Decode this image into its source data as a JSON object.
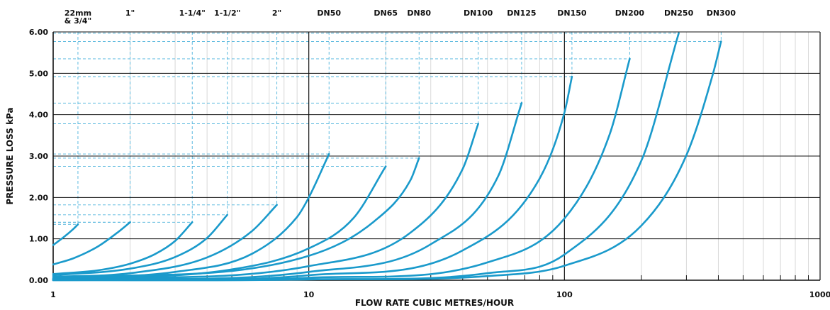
{
  "chart_data": {
    "type": "line",
    "title": "",
    "xlabel": "FLOW RATE CUBIC METRES/HOUR",
    "ylabel": "PRESSURE LOSS kPa",
    "x_scale": "log",
    "xlim": [
      1,
      1000
    ],
    "ylim": [
      0,
      6
    ],
    "x_tick_labels": [
      "1",
      "10",
      "100",
      "1000"
    ],
    "y_tick_labels": [
      "0.00",
      "1.00",
      "2.00",
      "3.00",
      "4.00",
      "5.00",
      "6.00"
    ],
    "grid": true,
    "line_color": "#1a9acb",
    "series": [
      {
        "name": "22mm & 3/4\"",
        "label_lines": [
          "22mm",
          "& 3/4\""
        ],
        "x": [
          1.0,
          1.1,
          1.2,
          1.25
        ],
        "y": [
          0.85,
          1.04,
          1.24,
          1.35
        ]
      },
      {
        "name": "1\"",
        "label_lines": [
          "1\""
        ],
        "x": [
          1.0,
          1.2,
          1.5,
          1.8,
          2.0
        ],
        "y": [
          0.38,
          0.53,
          0.82,
          1.17,
          1.4
        ]
      },
      {
        "name": "1-1/4\"",
        "label_lines": [
          "1-1/4\""
        ],
        "x": [
          1.0,
          1.5,
          2.0,
          2.5,
          3.0,
          3.5
        ],
        "y": [
          0.15,
          0.24,
          0.4,
          0.63,
          0.95,
          1.4
        ]
      },
      {
        "name": "1-1/2\"",
        "label_lines": [
          "1-1/2\""
        ],
        "x": [
          1.0,
          2.0,
          3.0,
          4.0,
          4.8
        ],
        "y": [
          0.12,
          0.28,
          0.56,
          1.02,
          1.58
        ]
      },
      {
        "name": "2\"",
        "label_lines": [
          "2\""
        ],
        "x": [
          1.0,
          2.0,
          4.0,
          6.0,
          7.5
        ],
        "y": [
          0.08,
          0.17,
          0.55,
          1.19,
          1.82
        ]
      },
      {
        "name": "DN50",
        "label_lines": [
          "DN50"
        ],
        "x": [
          1.0,
          3.0,
          6.0,
          9.0,
          10.0,
          12.0
        ],
        "y": [
          0.05,
          0.2,
          0.64,
          1.53,
          2.0,
          3.05
        ]
      },
      {
        "name": "DN65",
        "label_lines": [
          "DN65"
        ],
        "x": [
          1.0,
          5.0,
          10.0,
          15.0,
          20.0
        ],
        "y": [
          0.04,
          0.26,
          0.77,
          1.51,
          2.75
        ]
      },
      {
        "name": "DN80",
        "label_lines": [
          "DN80"
        ],
        "x": [
          1.0,
          10.0,
          18.0,
          25.0,
          27.0
        ],
        "y": [
          0.03,
          0.59,
          1.42,
          2.42,
          2.95
        ]
      },
      {
        "name": "DN100",
        "label_lines": [
          "DN100"
        ],
        "x": [
          1.0,
          10.0,
          25.0,
          40.0,
          46.0
        ],
        "y": [
          0.02,
          0.34,
          1.15,
          2.69,
          3.78
        ]
      },
      {
        "name": "DN125",
        "label_lines": [
          "DN125"
        ],
        "x": [
          1.0,
          10.0,
          30.0,
          55.0,
          68.0
        ],
        "y": [
          0.01,
          0.2,
          0.87,
          2.51,
          4.28
        ]
      },
      {
        "name": "DN150",
        "label_lines": [
          "DN150"
        ],
        "x": [
          1.0,
          10.0,
          40.0,
          80.0,
          100.0,
          107.0
        ],
        "y": [
          0.01,
          0.12,
          0.72,
          2.46,
          4.05,
          4.92
        ]
      },
      {
        "name": "DN200",
        "label_lines": [
          "DN200"
        ],
        "x": [
          1.0,
          10.0,
          50.0,
          100.0,
          150.0,
          180.0
        ],
        "y": [
          0.01,
          0.06,
          0.43,
          1.49,
          3.51,
          5.35
        ]
      },
      {
        "name": "DN250",
        "label_lines": [
          "DN250"
        ],
        "x": [
          1.0,
          10.0,
          50.0,
          100.0,
          200.0,
          280.0
        ],
        "y": [
          0.0,
          0.02,
          0.17,
          0.62,
          2.89,
          5.97
        ]
      },
      {
        "name": "DN300",
        "label_lines": [
          "DN300"
        ],
        "x": [
          1.0,
          10.0,
          50.0,
          100.0,
          200.0,
          300.0,
          380.0,
          410.0
        ],
        "y": [
          0.0,
          0.02,
          0.1,
          0.35,
          1.32,
          3.02,
          4.96,
          5.77
        ]
      }
    ]
  }
}
